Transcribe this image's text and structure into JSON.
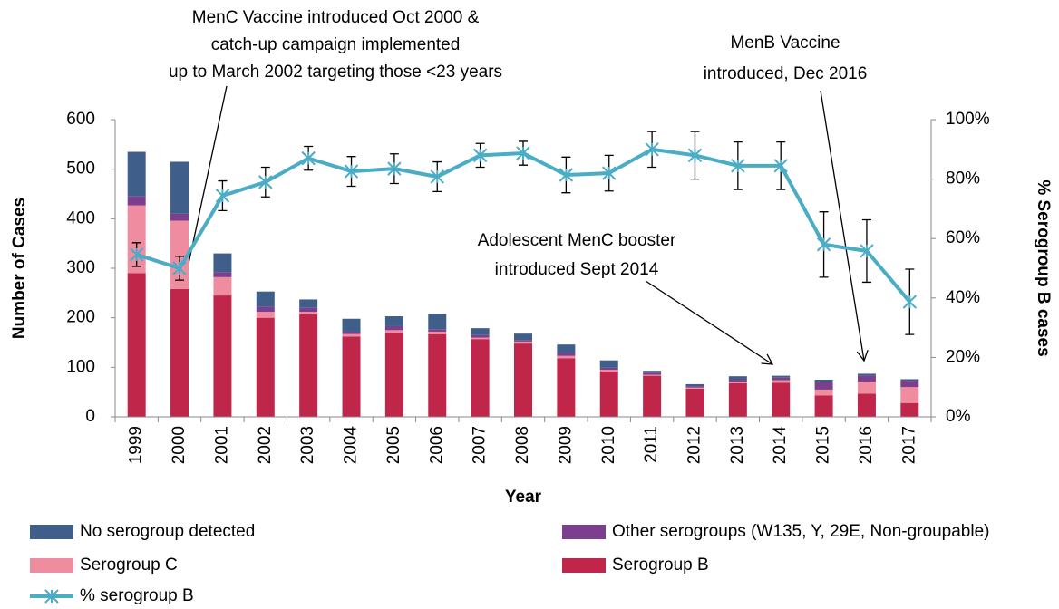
{
  "chart_data": {
    "type": "bar",
    "x_label": "Year",
    "y_label": "Number of Cases",
    "y2_label": "% Serogroup B cases",
    "categories": [
      "1999",
      "2000",
      "2001",
      "2002",
      "2003",
      "2004",
      "2005",
      "2006",
      "2007",
      "2008",
      "2009",
      "2010",
      "2011",
      "2012",
      "2013",
      "2014",
      "2015",
      "2016",
      "2017"
    ],
    "stacked": true,
    "series": [
      {
        "name": "Serogroup B",
        "color": "#c0264a",
        "values": [
          290,
          258,
          245,
          200,
          207,
          162,
          170,
          167,
          157,
          148,
          118,
          92,
          83,
          57,
          68,
          69,
          43,
          47,
          28
        ]
      },
      {
        "name": "Serogroup C",
        "color": "#f08ca0",
        "values": [
          137,
          138,
          37,
          12,
          5,
          5,
          5,
          5,
          3,
          4,
          5,
          3,
          2,
          2,
          3,
          5,
          12,
          24,
          32
        ]
      },
      {
        "name": "Other serogroups (W135, Y, 29E, Non-groupable)",
        "color": "#7b3f8e",
        "values": [
          18,
          14,
          10,
          10,
          8,
          5,
          8,
          5,
          5,
          3,
          6,
          4,
          4,
          3,
          4,
          5,
          15,
          12,
          13
        ]
      },
      {
        "name": "No serogroup detected",
        "color": "#3f5f8a",
        "values": [
          90,
          105,
          38,
          31,
          17,
          26,
          20,
          31,
          14,
          13,
          17,
          15,
          4,
          4,
          7,
          4,
          5,
          4,
          3
        ]
      },
      {
        "name": "% serogroup B",
        "type": "line",
        "axis": "y2",
        "color": "#4bacc6",
        "values": [
          54.6,
          50,
          74.4,
          79,
          87,
          82.6,
          83.5,
          80.8,
          88,
          88.7,
          81.4,
          82,
          90,
          88,
          84.5,
          84.5,
          58,
          55.8,
          38.7
        ],
        "errors": [
          4,
          4,
          5,
          5,
          4,
          5,
          5,
          5,
          4,
          4,
          6,
          6,
          6,
          8,
          8,
          8,
          11,
          10.5,
          11
        ]
      }
    ],
    "ylim": [
      0,
      600
    ],
    "yticks": [
      0,
      100,
      200,
      300,
      400,
      500,
      600
    ],
    "y2lim": [
      0,
      100
    ],
    "y2ticks": [
      {
        "value": 0,
        "label": "0%"
      },
      {
        "value": 20,
        "label": "20%"
      },
      {
        "value": 40,
        "label": "40%"
      },
      {
        "value": 60,
        "label": "60%"
      },
      {
        "value": 80,
        "label": "80%"
      },
      {
        "value": 100,
        "label": "100%"
      }
    ],
    "annotations": [
      {
        "lines": [
          "MenC Vaccine introduced Oct 2000 &",
          "catch-up campaign implemented",
          "up to March 2002 targeting those <23 years"
        ]
      },
      {
        "lines": [
          "MenB Vaccine",
          "introduced, Dec 2016"
        ]
      },
      {
        "lines": [
          "Adolescent MenC booster",
          "introduced Sept 2014"
        ]
      }
    ]
  }
}
